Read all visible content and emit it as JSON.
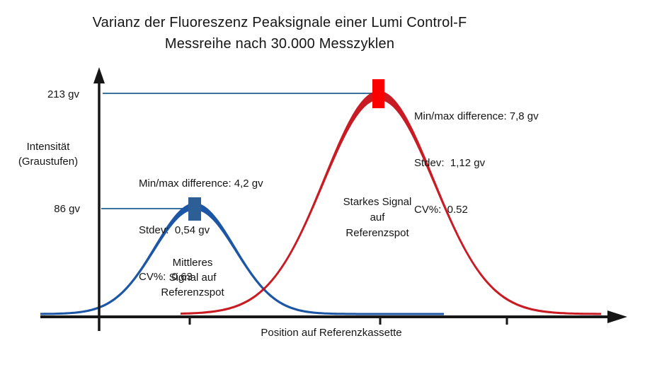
{
  "title": {
    "line1": "Varianz der Fluoreszenz Peaksignale einer Lumi Control-F",
    "line2": "Messreihe nach 30.000 Messzyklen"
  },
  "y_axis": {
    "title": "Intensität\n(Graustufen)",
    "ref_high_label": "213 gv",
    "ref_low_label": "86 gv"
  },
  "x_axis": {
    "label": "Position auf Referenzkassette"
  },
  "annotations": {
    "medium_stats": {
      "minmax": "Min/max difference: 4,2 gv",
      "stdev": "Stdev:  0,54 gv",
      "cv": "CV%:  0,63"
    },
    "strong_stats": {
      "minmax": "Min/max difference: 7,8 gv",
      "stdev": "Stdev:  1,12 gv",
      "cv": "CV%:  0.52"
    },
    "medium_curve_label": "Mittleres\nSignal auf\nReferenzspot",
    "strong_curve_label": "Starkes Signal\nauf\nReferenzspot"
  },
  "colors": {
    "medium_curve": "#1d56a5",
    "medium_marker": "#2d5f96",
    "strong_curve": "#c40a12",
    "strong_marker": "#fb0000",
    "reference_line": "#1e6191",
    "axis": "#161616"
  },
  "chart_data": {
    "type": "area",
    "title": "Varianz der Fluoreszenz Peaksignale einer Lumi Control-F Messreihe nach 30.000 Messzyklen",
    "xlabel": "Position auf Referenzkassette",
    "ylabel": "Intensität (Graustufen)",
    "grid": false,
    "legend": false,
    "y_reference_lines_gv": [
      213,
      86
    ],
    "series": [
      {
        "name": "Mittleres Signal auf Referenzspot",
        "shape": "gaussian-peak",
        "peak_intensity_gv": 86,
        "min_max_difference_gv": "4,2 gv",
        "stdev_gv": "0,54 gv",
        "cv_percent": "0,63",
        "color": "#1d56a5"
      },
      {
        "name": "Starkes Signal auf Referenzspot",
        "shape": "gaussian-peak",
        "peak_intensity_gv": 213,
        "min_max_difference_gv": "7,8 gv",
        "stdev_gv": "1,12 gv",
        "cv_percent": "0.52",
        "color": "#c40a12"
      }
    ]
  }
}
